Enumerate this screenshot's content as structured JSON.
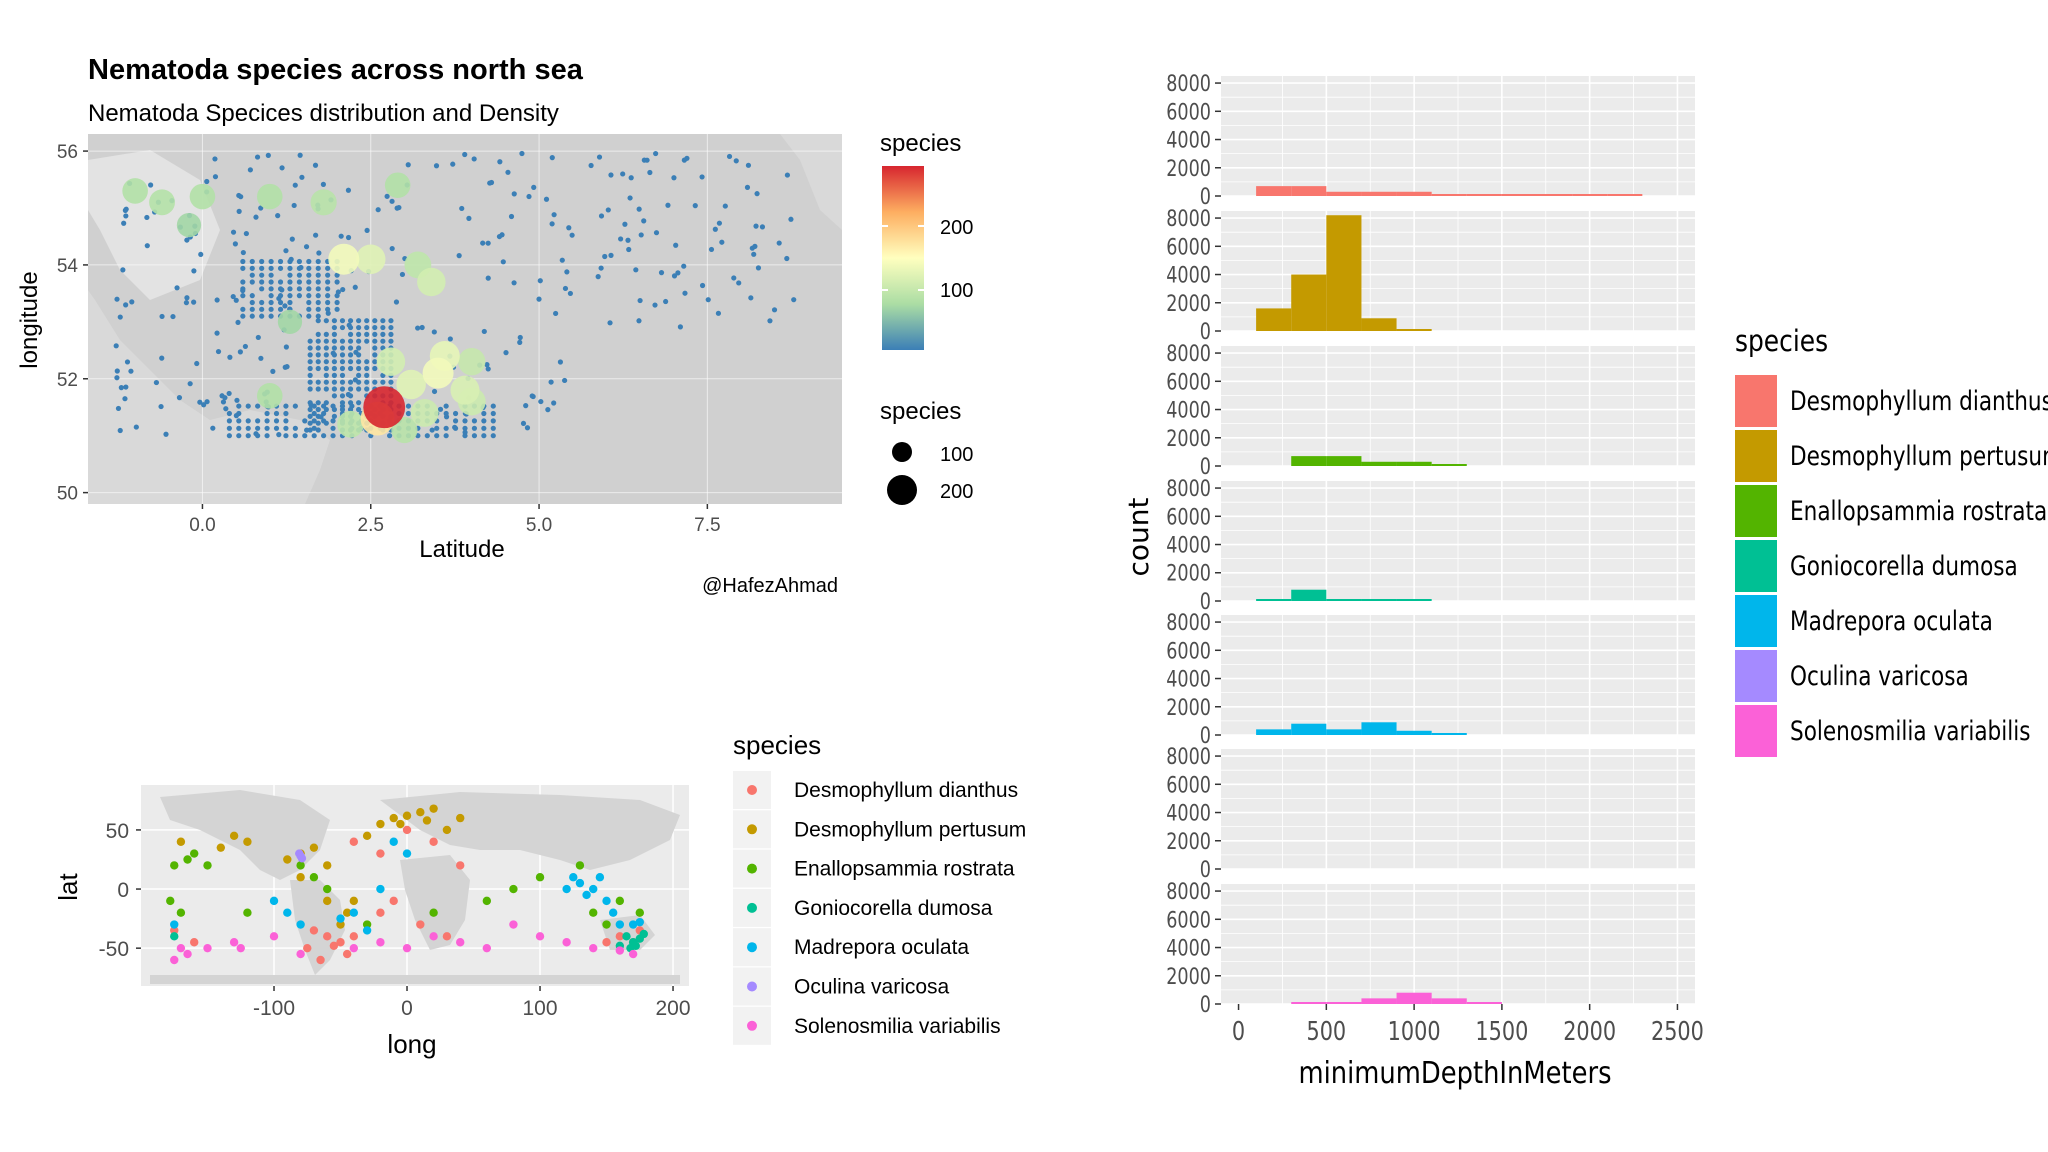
{
  "colors": {
    "panel_bg": "#ebebeb",
    "grid": "#ffffff",
    "land": "#d9d9d9",
    "points_low": "#3b7fb6",
    "points_mid": "#ffffbf",
    "points_high": "#d7262f"
  },
  "map_panel": {
    "title": "Nematoda species across north sea",
    "subtitle": "Nematoda Specices distribution and Density",
    "xlabel": "Latitude",
    "ylabel": "longitude",
    "x_ticks": [
      "0.0",
      "2.5",
      "5.0",
      "7.5"
    ],
    "y_ticks": [
      "56",
      "54",
      "52",
      "50"
    ],
    "caption": "@HafezAhmad",
    "legend_color": {
      "title": "species",
      "labels": [
        "200",
        "100"
      ]
    },
    "legend_size": {
      "title": "species",
      "labels": [
        "100",
        "200"
      ]
    }
  },
  "world_panel": {
    "xlabel": "long",
    "ylabel": "lat",
    "x_ticks": [
      "-100",
      "0",
      "100",
      "200"
    ],
    "y_ticks": [
      "50",
      "0",
      "-50"
    ],
    "legend_title": "species"
  },
  "hist_panel": {
    "xlabel": "minimumDepthInMeters",
    "ylabel": "count",
    "legend_title": "species"
  },
  "species": [
    {
      "name": "Desmophyllum dianthus",
      "color": "#f8766d"
    },
    {
      "name": "Desmophyllum pertusum",
      "color": "#c49a00"
    },
    {
      "name": "Enallopsammia rostrata",
      "color": "#53b400"
    },
    {
      "name": "Goniocorella dumosa",
      "color": "#00c094"
    },
    {
      "name": "Madrepora oculata",
      "color": "#00b6eb"
    },
    {
      "name": "Oculina varicosa",
      "color": "#a58aff"
    },
    {
      "name": "Solenosmilia variabilis",
      "color": "#fb61d7"
    }
  ],
  "chart_data": [
    {
      "type": "scatter",
      "title": "Nematoda species across north sea",
      "subtitle": "Nematoda Specices distribution and Density",
      "xlabel": "Latitude",
      "ylabel": "longitude",
      "xlim": [
        -1.7,
        9.5
      ],
      "ylim": [
        49.8,
        56.3
      ],
      "x_ticks": [
        0.0,
        2.5,
        5.0,
        7.5
      ],
      "y_ticks": [
        50,
        52,
        54,
        56
      ],
      "color_legend": {
        "title": "species",
        "range": [
          0,
          260
        ],
        "breaks": [
          100,
          200
        ]
      },
      "size_legend": {
        "title": "species",
        "breaks": [
          100,
          200
        ]
      },
      "points": [
        {
          "x": 2.7,
          "y": 51.5,
          "v": 260
        },
        {
          "x": 2.6,
          "y": 51.3,
          "v": 150
        },
        {
          "x": 3.5,
          "y": 52.1,
          "v": 120
        },
        {
          "x": 3.6,
          "y": 52.4,
          "v": 110
        },
        {
          "x": 3.1,
          "y": 51.9,
          "v": 105
        },
        {
          "x": 3.9,
          "y": 51.8,
          "v": 100
        },
        {
          "x": 2.1,
          "y": 54.1,
          "v": 120
        },
        {
          "x": 2.5,
          "y": 54.1,
          "v": 105
        },
        {
          "x": 1.8,
          "y": 55.1,
          "v": 75
        },
        {
          "x": 0.0,
          "y": 55.2,
          "v": 70
        },
        {
          "x": -1.0,
          "y": 55.3,
          "v": 70
        },
        {
          "x": -0.6,
          "y": 55.1,
          "v": 72
        },
        {
          "x": 3.4,
          "y": 53.7,
          "v": 95
        },
        {
          "x": 3.2,
          "y": 54.0,
          "v": 80
        },
        {
          "x": 1.0,
          "y": 55.2,
          "v": 70
        },
        {
          "x": 2.9,
          "y": 55.4,
          "v": 70
        },
        {
          "x": 4.0,
          "y": 51.6,
          "v": 90
        },
        {
          "x": 1.0,
          "y": 51.7,
          "v": 70
        },
        {
          "x": 2.8,
          "y": 52.3,
          "v": 95
        },
        {
          "x": 3.3,
          "y": 51.4,
          "v": 90
        },
        {
          "x": 2.2,
          "y": 51.2,
          "v": 80
        },
        {
          "x": 3.0,
          "y": 51.1,
          "v": 75
        },
        {
          "x": 4.0,
          "y": 52.3,
          "v": 85
        },
        {
          "x": 1.3,
          "y": 53.0,
          "v": 60
        },
        {
          "x": -0.2,
          "y": 54.7,
          "v": 60
        }
      ]
    },
    {
      "type": "scatter",
      "xlabel": "long",
      "ylabel": "lat",
      "xlim": [
        -200,
        212
      ],
      "ylim": [
        -82,
        88
      ],
      "x_ticks": [
        -100,
        0,
        100,
        200
      ],
      "y_ticks": [
        -50,
        0,
        50
      ],
      "legend_title": "species",
      "series": [
        {
          "name": "Desmophyllum dianthus",
          "points": [
            [
              -160,
              -45
            ],
            [
              -175,
              -35
            ],
            [
              -60,
              -40
            ],
            [
              -55,
              -48
            ],
            [
              -70,
              -35
            ],
            [
              -50,
              -45
            ],
            [
              -40,
              -40
            ],
            [
              -75,
              -50
            ],
            [
              -65,
              -60
            ],
            [
              -45,
              -55
            ],
            [
              -20,
              -20
            ],
            [
              10,
              -30
            ],
            [
              30,
              -40
            ],
            [
              170,
              -45
            ],
            [
              175,
              -35
            ],
            [
              160,
              -40
            ],
            [
              150,
              -45
            ],
            [
              -40,
              40
            ],
            [
              -20,
              30
            ],
            [
              0,
              50
            ],
            [
              20,
              40
            ],
            [
              40,
              20
            ],
            [
              -10,
              -10
            ]
          ]
        },
        {
          "name": "Desmophyllum pertusum",
          "points": [
            [
              -10,
              60
            ],
            [
              0,
              62
            ],
            [
              10,
              65
            ],
            [
              20,
              68
            ],
            [
              -20,
              55
            ],
            [
              -5,
              55
            ],
            [
              15,
              58
            ],
            [
              -30,
              45
            ],
            [
              -70,
              35
            ],
            [
              -80,
              30
            ],
            [
              -90,
              25
            ],
            [
              -60,
              20
            ],
            [
              -40,
              -10
            ],
            [
              -45,
              -20
            ],
            [
              -50,
              -30
            ],
            [
              -120,
              40
            ],
            [
              -130,
              45
            ],
            [
              -140,
              35
            ],
            [
              -170,
              40
            ],
            [
              -60,
              -10
            ],
            [
              30,
              50
            ],
            [
              40,
              60
            ],
            [
              -80,
              10
            ]
          ]
        },
        {
          "name": "Enallopsammia rostrata",
          "points": [
            [
              -175,
              20
            ],
            [
              -165,
              25
            ],
            [
              -160,
              30
            ],
            [
              -150,
              20
            ],
            [
              -178,
              -10
            ],
            [
              -170,
              -20
            ],
            [
              -80,
              20
            ],
            [
              -70,
              10
            ],
            [
              -60,
              0
            ],
            [
              -30,
              -30
            ],
            [
              20,
              -20
            ],
            [
              60,
              -10
            ],
            [
              80,
              0
            ],
            [
              100,
              10
            ],
            [
              130,
              20
            ],
            [
              140,
              -20
            ],
            [
              150,
              -30
            ],
            [
              160,
              -10
            ],
            [
              175,
              -20
            ],
            [
              -120,
              -20
            ]
          ]
        },
        {
          "name": "Goniocorella dumosa",
          "points": [
            [
              165,
              -40
            ],
            [
              170,
              -45
            ],
            [
              175,
              -42
            ],
            [
              178,
              -38
            ],
            [
              160,
              -48
            ],
            [
              168,
              -50
            ],
            [
              172,
              -48
            ],
            [
              -175,
              -40
            ]
          ]
        },
        {
          "name": "Madrepora oculata",
          "points": [
            [
              -40,
              -20
            ],
            [
              -50,
              -25
            ],
            [
              -30,
              -35
            ],
            [
              -80,
              -30
            ],
            [
              -90,
              -20
            ],
            [
              -100,
              -10
            ],
            [
              120,
              0
            ],
            [
              125,
              10
            ],
            [
              130,
              5
            ],
            [
              135,
              -5
            ],
            [
              140,
              0
            ],
            [
              145,
              10
            ],
            [
              150,
              -10
            ],
            [
              155,
              -20
            ],
            [
              160,
              -30
            ],
            [
              170,
              -30
            ],
            [
              175,
              -28
            ],
            [
              -175,
              -30
            ],
            [
              0,
              30
            ],
            [
              -10,
              40
            ],
            [
              -20,
              0
            ]
          ]
        },
        {
          "name": "Oculina varicosa",
          "points": [
            [
              -80,
              28
            ],
            [
              -81,
              30
            ],
            [
              -79,
              26
            ]
          ]
        },
        {
          "name": "Solenosmilia variabilis",
          "points": [
            [
              -170,
              -50
            ],
            [
              -165,
              -55
            ],
            [
              -175,
              -60
            ],
            [
              -150,
              -50
            ],
            [
              -130,
              -45
            ],
            [
              -125,
              -50
            ],
            [
              -40,
              -50
            ],
            [
              -20,
              -45
            ],
            [
              0,
              -50
            ],
            [
              20,
              -40
            ],
            [
              40,
              -45
            ],
            [
              60,
              -50
            ],
            [
              80,
              -30
            ],
            [
              100,
              -40
            ],
            [
              120,
              -45
            ],
            [
              140,
              -50
            ],
            [
              160,
              -52
            ],
            [
              170,
              -55
            ],
            [
              -80,
              -55
            ],
            [
              -100,
              -40
            ]
          ]
        }
      ]
    },
    {
      "type": "bar",
      "xlabel": "minimumDepthInMeters",
      "ylabel": "count",
      "xlim": [
        -100,
        2600
      ],
      "ylim": [
        0,
        8500
      ],
      "x_ticks": [
        0,
        500,
        1000,
        1500,
        2000,
        2500
      ],
      "y_ticks": [
        0,
        2000,
        4000,
        6000,
        8000
      ],
      "bin_edges": [
        100,
        300,
        500,
        700,
        900,
        1100,
        1300,
        1500,
        1700,
        1900,
        2100,
        2300
      ],
      "legend_title": "species",
      "series": [
        {
          "name": "Desmophyllum dianthus",
          "values": [
            700,
            700,
            300,
            300,
            300,
            100,
            100,
            100,
            100,
            100,
            100
          ]
        },
        {
          "name": "Desmophyllum pertusum",
          "values": [
            1600,
            4000,
            8200,
            900,
            100,
            0,
            0,
            0,
            0,
            0,
            0
          ]
        },
        {
          "name": "Enallopsammia rostrata",
          "values": [
            0,
            700,
            700,
            300,
            300,
            100,
            0,
            0,
            0,
            0,
            0
          ]
        },
        {
          "name": "Goniocorella dumosa",
          "values": [
            100,
            800,
            100,
            100,
            100,
            0,
            0,
            0,
            0,
            0,
            0
          ]
        },
        {
          "name": "Madrepora oculata",
          "values": [
            400,
            800,
            400,
            900,
            300,
            100,
            0,
            0,
            0,
            0,
            0
          ]
        },
        {
          "name": "Oculina varicosa",
          "values": [
            0,
            0,
            0,
            0,
            0,
            0,
            0,
            0,
            0,
            0,
            0
          ]
        },
        {
          "name": "Solenosmilia variabilis",
          "values": [
            0,
            100,
            100,
            400,
            800,
            400,
            100,
            0,
            0,
            0,
            0
          ]
        }
      ]
    }
  ]
}
